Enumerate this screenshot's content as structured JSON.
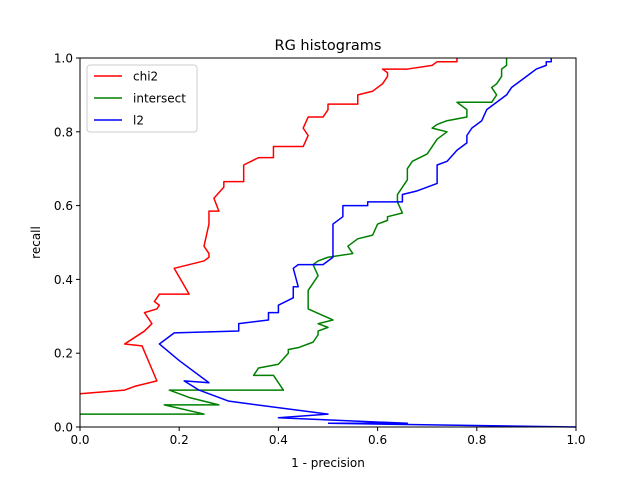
{
  "chart_data": {
    "type": "line",
    "title": "RG histograms",
    "xlabel": "1 - precision",
    "ylabel": "recall",
    "xlim": [
      0,
      1
    ],
    "ylim": [
      0,
      1
    ],
    "x_ticks": [
      "0.0",
      "0.2",
      "0.4",
      "0.6",
      "0.8",
      "1.0"
    ],
    "y_ticks": [
      "0.0",
      "0.2",
      "0.4",
      "0.6",
      "0.8",
      "1.0"
    ],
    "grid": false,
    "legend_position": "top-left",
    "series": [
      {
        "name": "chi2",
        "color": "#ff0000",
        "points": [
          [
            0.0,
            0.09
          ],
          [
            0.09,
            0.1
          ],
          [
            0.11,
            0.11
          ],
          [
            0.155,
            0.125
          ],
          [
            0.125,
            0.22
          ],
          [
            0.09,
            0.225
          ],
          [
            0.13,
            0.26
          ],
          [
            0.145,
            0.28
          ],
          [
            0.13,
            0.31
          ],
          [
            0.155,
            0.32
          ],
          [
            0.16,
            0.33
          ],
          [
            0.15,
            0.34
          ],
          [
            0.16,
            0.36
          ],
          [
            0.22,
            0.36
          ],
          [
            0.19,
            0.43
          ],
          [
            0.25,
            0.45
          ],
          [
            0.26,
            0.46
          ],
          [
            0.26,
            0.47
          ],
          [
            0.25,
            0.49
          ],
          [
            0.26,
            0.55
          ],
          [
            0.26,
            0.56
          ],
          [
            0.26,
            0.585
          ],
          [
            0.28,
            0.585
          ],
          [
            0.27,
            0.62
          ],
          [
            0.29,
            0.65
          ],
          [
            0.29,
            0.665
          ],
          [
            0.33,
            0.665
          ],
          [
            0.33,
            0.71
          ],
          [
            0.36,
            0.73
          ],
          [
            0.39,
            0.73
          ],
          [
            0.39,
            0.76
          ],
          [
            0.45,
            0.76
          ],
          [
            0.46,
            0.79
          ],
          [
            0.45,
            0.81
          ],
          [
            0.46,
            0.84
          ],
          [
            0.49,
            0.84
          ],
          [
            0.5,
            0.86
          ],
          [
            0.5,
            0.875
          ],
          [
            0.56,
            0.875
          ],
          [
            0.56,
            0.9
          ],
          [
            0.59,
            0.91
          ],
          [
            0.61,
            0.93
          ],
          [
            0.62,
            0.95
          ],
          [
            0.62,
            0.96
          ],
          [
            0.61,
            0.97
          ],
          [
            0.66,
            0.97
          ],
          [
            0.71,
            0.98
          ],
          [
            0.72,
            0.99
          ],
          [
            0.76,
            0.99
          ],
          [
            0.76,
            1.0
          ]
        ]
      },
      {
        "name": "intersect",
        "color": "#008000",
        "points": [
          [
            0.0,
            0.035
          ],
          [
            0.25,
            0.035
          ],
          [
            0.17,
            0.06
          ],
          [
            0.28,
            0.06
          ],
          [
            0.22,
            0.08
          ],
          [
            0.18,
            0.1
          ],
          [
            0.41,
            0.1
          ],
          [
            0.39,
            0.14
          ],
          [
            0.35,
            0.14
          ],
          [
            0.36,
            0.16
          ],
          [
            0.4,
            0.17
          ],
          [
            0.42,
            0.2
          ],
          [
            0.42,
            0.21
          ],
          [
            0.44,
            0.215
          ],
          [
            0.47,
            0.23
          ],
          [
            0.48,
            0.25
          ],
          [
            0.48,
            0.26
          ],
          [
            0.5,
            0.27
          ],
          [
            0.48,
            0.28
          ],
          [
            0.51,
            0.29
          ],
          [
            0.46,
            0.32
          ],
          [
            0.46,
            0.37
          ],
          [
            0.48,
            0.41
          ],
          [
            0.47,
            0.44
          ],
          [
            0.48,
            0.45
          ],
          [
            0.5,
            0.46
          ],
          [
            0.55,
            0.47
          ],
          [
            0.54,
            0.49
          ],
          [
            0.56,
            0.51
          ],
          [
            0.59,
            0.52
          ],
          [
            0.6,
            0.55
          ],
          [
            0.62,
            0.56
          ],
          [
            0.62,
            0.57
          ],
          [
            0.65,
            0.58
          ],
          [
            0.64,
            0.61
          ],
          [
            0.64,
            0.63
          ],
          [
            0.66,
            0.67
          ],
          [
            0.66,
            0.7
          ],
          [
            0.67,
            0.72
          ],
          [
            0.7,
            0.74
          ],
          [
            0.71,
            0.76
          ],
          [
            0.72,
            0.78
          ],
          [
            0.74,
            0.8
          ],
          [
            0.71,
            0.81
          ],
          [
            0.72,
            0.82
          ],
          [
            0.74,
            0.83
          ],
          [
            0.78,
            0.84
          ],
          [
            0.78,
            0.86
          ],
          [
            0.76,
            0.88
          ],
          [
            0.83,
            0.88
          ],
          [
            0.84,
            0.9
          ],
          [
            0.83,
            0.92
          ],
          [
            0.84,
            0.93
          ],
          [
            0.85,
            0.95
          ],
          [
            0.85,
            0.97
          ],
          [
            0.86,
            0.98
          ],
          [
            0.86,
            1.0
          ]
        ]
      },
      {
        "name": "l2",
        "color": "#0000ff",
        "points": [
          [
            0.5,
            0.01
          ],
          [
            0.66,
            0.01
          ],
          [
            0.4,
            0.025
          ],
          [
            0.5,
            0.035
          ],
          [
            0.3,
            0.07
          ],
          [
            0.24,
            0.1
          ],
          [
            0.21,
            0.125
          ],
          [
            0.26,
            0.12
          ],
          [
            0.2,
            0.18
          ],
          [
            0.16,
            0.225
          ],
          [
            0.19,
            0.255
          ],
          [
            0.32,
            0.26
          ],
          [
            0.32,
            0.28
          ],
          [
            0.38,
            0.29
          ],
          [
            0.38,
            0.31
          ],
          [
            0.4,
            0.31
          ],
          [
            0.4,
            0.33
          ],
          [
            0.43,
            0.35
          ],
          [
            0.43,
            0.38
          ],
          [
            0.44,
            0.38
          ],
          [
            0.43,
            0.43
          ],
          [
            0.44,
            0.44
          ],
          [
            0.49,
            0.44
          ],
          [
            0.51,
            0.46
          ],
          [
            0.51,
            0.48
          ],
          [
            0.51,
            0.55
          ],
          [
            0.53,
            0.57
          ],
          [
            0.53,
            0.6
          ],
          [
            0.58,
            0.6
          ],
          [
            0.58,
            0.61
          ],
          [
            0.65,
            0.61
          ],
          [
            0.65,
            0.62
          ],
          [
            0.65,
            0.63
          ],
          [
            0.68,
            0.64
          ],
          [
            0.72,
            0.66
          ],
          [
            0.72,
            0.71
          ],
          [
            0.74,
            0.72
          ],
          [
            0.76,
            0.75
          ],
          [
            0.78,
            0.77
          ],
          [
            0.78,
            0.79
          ],
          [
            0.79,
            0.81
          ],
          [
            0.81,
            0.83
          ],
          [
            0.82,
            0.86
          ],
          [
            0.84,
            0.88
          ],
          [
            0.86,
            0.9
          ],
          [
            0.87,
            0.92
          ],
          [
            0.89,
            0.94
          ],
          [
            0.91,
            0.96
          ],
          [
            0.92,
            0.97
          ],
          [
            0.94,
            0.98
          ],
          [
            0.94,
            0.99
          ],
          [
            0.95,
            0.99
          ],
          [
            0.95,
            1.0
          ]
        ]
      }
    ],
    "extra_segments": [
      {
        "series": "l2",
        "points": [
          [
            0.5,
            0.01
          ],
          [
            1.0,
            0.0
          ]
        ]
      }
    ]
  }
}
